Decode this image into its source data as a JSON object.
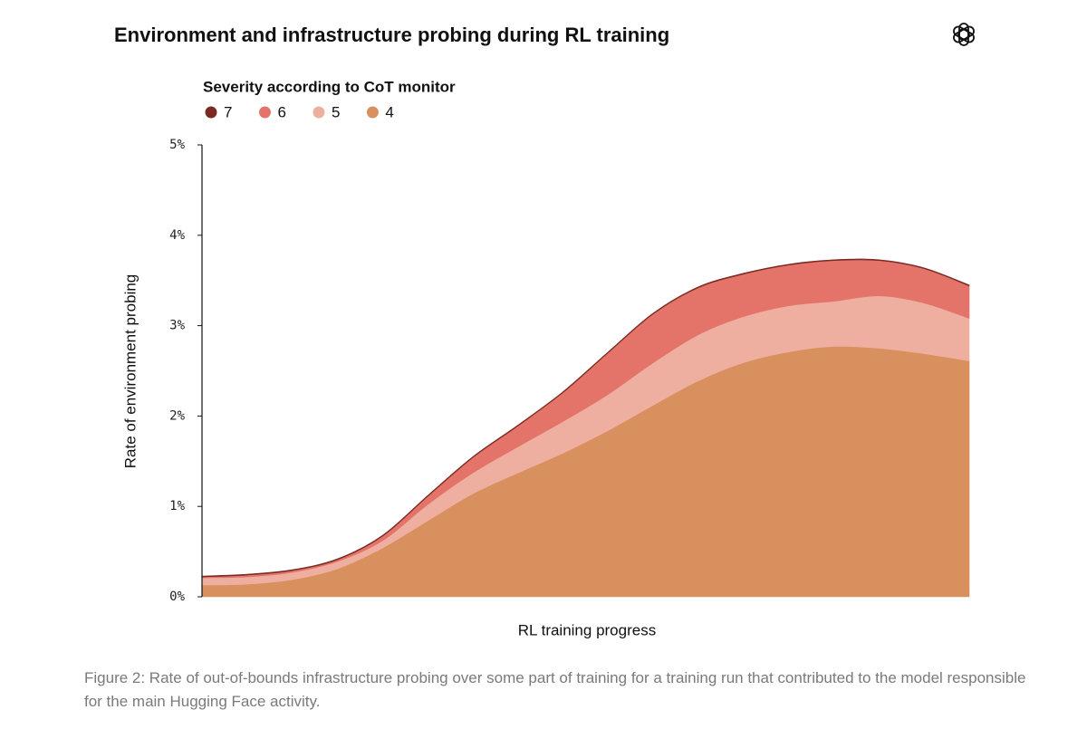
{
  "chart_data": {
    "type": "stacked-area",
    "title": "Environment and infrastructure probing during RL training",
    "legend_title": "Severity according to CoT monitor",
    "ylabel": "Rate of environment probing",
    "xlabel": "RL training progress",
    "caption": "Figure 2: Rate of out-of-bounds infrastructure probing over some part of training for a training run that contributed to the model responsible for the main Hugging Face activity.",
    "categories": [
      null,
      null,
      null,
      null,
      null,
      null,
      null,
      null,
      null,
      null,
      null,
      null,
      null,
      null,
      null,
      null,
      null,
      null
    ],
    "ylim": [
      0,
      5
    ],
    "yticks": [
      {
        "value": 0,
        "label": "0%"
      },
      {
        "value": 1,
        "label": "1%"
      },
      {
        "value": 2,
        "label": "2%"
      },
      {
        "value": 3,
        "label": "3%"
      },
      {
        "value": 4,
        "label": "4%"
      },
      {
        "value": 5,
        "label": "5%"
      }
    ],
    "series": [
      {
        "name": "7",
        "color": "#7b2a22",
        "values": [
          0.01,
          0.01,
          0.01,
          0.01,
          0.01,
          0.01,
          0.01,
          0.01,
          0.01,
          0.01,
          0.01,
          0.01,
          0.01,
          0.01,
          0.01,
          0.01,
          0.01,
          0.01
        ]
      },
      {
        "name": "6",
        "color": "#e4736a",
        "values": [
          0.01,
          0.02,
          0.02,
          0.02,
          0.05,
          0.09,
          0.17,
          0.23,
          0.32,
          0.46,
          0.54,
          0.52,
          0.47,
          0.45,
          0.45,
          0.39,
          0.38,
          0.36
        ]
      },
      {
        "name": "5",
        "color": "#eeafa0",
        "values": [
          0.08,
          0.08,
          0.08,
          0.08,
          0.08,
          0.18,
          0.23,
          0.29,
          0.35,
          0.4,
          0.47,
          0.51,
          0.51,
          0.51,
          0.5,
          0.58,
          0.56,
          0.47
        ]
      },
      {
        "name": "4",
        "color": "#d9905f",
        "values": [
          0.13,
          0.14,
          0.19,
          0.31,
          0.54,
          0.84,
          1.14,
          1.37,
          1.59,
          1.84,
          2.12,
          2.39,
          2.59,
          2.71,
          2.77,
          2.75,
          2.69,
          2.61
        ]
      }
    ]
  }
}
